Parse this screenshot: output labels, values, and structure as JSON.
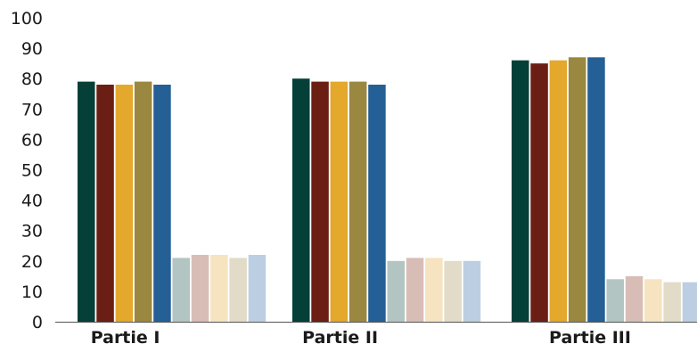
{
  "chart_data": {
    "type": "bar",
    "title": "",
    "xlabel": "",
    "ylabel": "",
    "ylim": [
      0,
      100
    ],
    "yticks": [
      0,
      10,
      20,
      30,
      40,
      50,
      60,
      70,
      80,
      90,
      100
    ],
    "categories": [
      "Partie I",
      "Partie II",
      "Partie III"
    ],
    "grid": false,
    "legend": "none",
    "series": [
      {
        "color": "#043f38",
        "values": [
          79,
          80,
          86
        ]
      },
      {
        "color": "#6b1e14",
        "values": [
          78,
          79,
          85
        ]
      },
      {
        "color": "#e3a82c",
        "values": [
          78,
          79,
          86
        ]
      },
      {
        "color": "#9a8740",
        "values": [
          79,
          79,
          87
        ]
      },
      {
        "color": "#245f96",
        "values": [
          78,
          78,
          87
        ]
      },
      {
        "color": "#b3c5c2",
        "values": [
          21,
          20,
          14
        ]
      },
      {
        "color": "#d8bdb6",
        "values": [
          22,
          21,
          15
        ]
      },
      {
        "color": "#f6e3bf",
        "values": [
          22,
          21,
          14
        ]
      },
      {
        "color": "#e1dbc7",
        "values": [
          21,
          20,
          13
        ]
      },
      {
        "color": "#bccee1",
        "values": [
          22,
          20,
          13
        ]
      }
    ]
  }
}
